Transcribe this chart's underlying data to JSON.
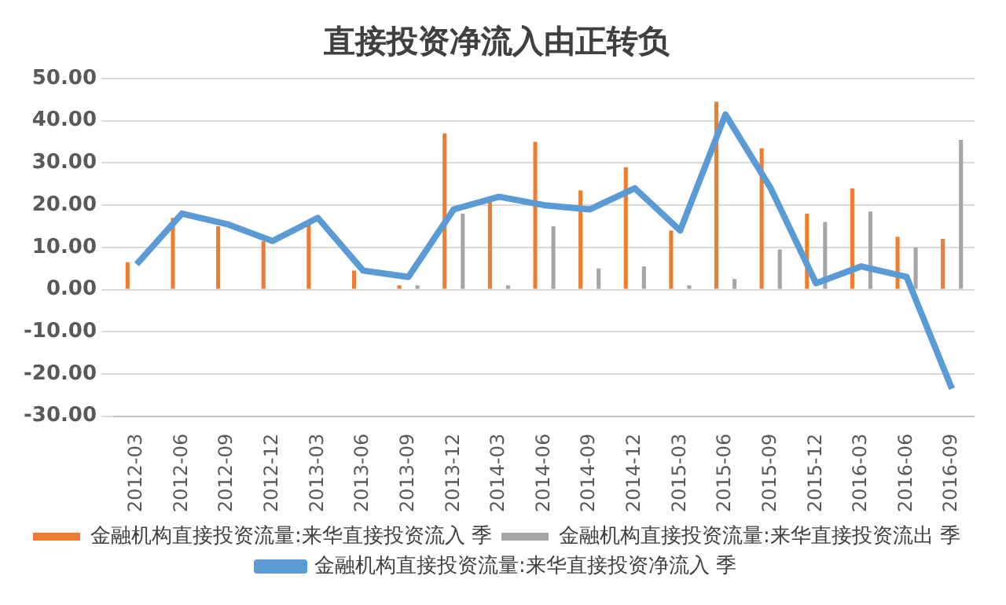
{
  "chart_data": {
    "type": "bar",
    "title": "直接投资净流入由正转负",
    "categories": [
      "2012-03",
      "2012-06",
      "2012-09",
      "2012-12",
      "2013-03",
      "2013-06",
      "2013-09",
      "2013-12",
      "2014-03",
      "2014-06",
      "2014-09",
      "2014-12",
      "2015-03",
      "2015-06",
      "2015-09",
      "2015-12",
      "2016-03",
      "2016-06",
      "2016-09"
    ],
    "series": [
      {
        "name": "金融机构直接投资流量:来华直接投资流入 季",
        "color": "#ed7d31",
        "values": [
          6.5,
          17,
          15,
          11.5,
          16,
          4.5,
          1,
          37,
          21.5,
          35,
          23.5,
          29,
          14,
          44.5,
          33.5,
          18,
          24,
          12.5,
          12
        ]
      },
      {
        "name": "金融机构直接投资流量:来华直接投资流出 季",
        "color": "#a5a5a5",
        "values": [
          null,
          0,
          0,
          0,
          0,
          0,
          1,
          18,
          1,
          15,
          5,
          5.5,
          1,
          2.5,
          9.5,
          16,
          18.5,
          10,
          35.5
        ]
      },
      {
        "name": "金融机构直接投资流量:来华直接投资净流入 季",
        "type": "line",
        "color": "#5b9bd5",
        "values": [
          6,
          18,
          15.5,
          11.5,
          17,
          4.5,
          3,
          19,
          22,
          20,
          19,
          24,
          14,
          41.5,
          24,
          1.5,
          5.5,
          3,
          -23.5
        ]
      }
    ],
    "ylim": [
      -30,
      50
    ],
    "yticks": [
      {
        "value": -30,
        "label": "-30.00"
      },
      {
        "value": -20,
        "label": "-20.00"
      },
      {
        "value": -10,
        "label": "-10.00"
      },
      {
        "value": 0,
        "label": "0.00"
      },
      {
        "value": 10,
        "label": "10.00"
      },
      {
        "value": 20,
        "label": "20.00"
      },
      {
        "value": 30,
        "label": "30.00"
      },
      {
        "value": 40,
        "label": "40.00"
      },
      {
        "value": 50,
        "label": "50.00"
      }
    ],
    "grid": "y",
    "legend": "bottom",
    "marker": "none",
    "line_style": "solid"
  }
}
